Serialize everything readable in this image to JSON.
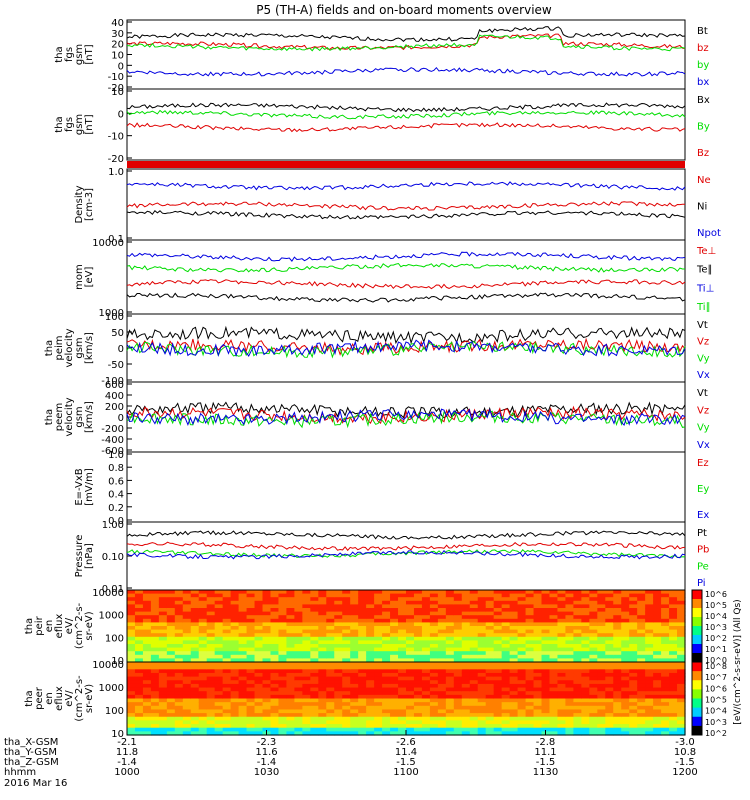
{
  "title": "P5 (TH-A) fields and on-board moments overview",
  "date_label": "2016 Mar 16",
  "colors": {
    "black": "#000000",
    "red": "#e00000",
    "green": "#00dd00",
    "blue": "#0000e0"
  },
  "chart_data": [
    {
      "type": "line",
      "ylabel": [
        "tha",
        "fgs",
        "gsm",
        "[nT]"
      ],
      "ylim": [
        -20,
        40
      ],
      "yticks": [
        "40",
        "30",
        "20",
        "10",
        "0",
        "-10",
        "-20"
      ],
      "series": [
        {
          "name": "Bt",
          "color": "black",
          "base": 26
        },
        {
          "name": "bz",
          "color": "red",
          "base": 18
        },
        {
          "name": "by",
          "color": "green",
          "base": 17
        },
        {
          "name": "bx",
          "color": "blue",
          "base": -6
        }
      ]
    },
    {
      "type": "line",
      "ylabel": [
        "tha",
        "fgs",
        "gsm",
        "[nT]"
      ],
      "ylim": [
        -25,
        12
      ],
      "yticks": [
        "10",
        "0",
        "-10",
        "-20"
      ],
      "series": [
        {
          "name": "Bx",
          "color": "black",
          "base": 3
        },
        {
          "name": "By",
          "color": "green",
          "base": -1
        },
        {
          "name": "Bz",
          "color": "red",
          "base": -8
        }
      ]
    },
    {
      "type": "line",
      "ylabel": [
        "Density",
        "[cm-3]"
      ],
      "ylim": [
        0.1,
        1.0
      ],
      "log": true,
      "yticks": [
        "1.0",
        "0.1"
      ],
      "series": [
        {
          "name": "Ne",
          "color": "red",
          "base": 0.3
        },
        {
          "name": "Ni",
          "color": "black",
          "base": 0.22
        },
        {
          "name": "Npot",
          "color": "blue",
          "base": 0.6
        }
      ]
    },
    {
      "type": "line",
      "ylabel": [
        "mom",
        "[eV]"
      ],
      "ylim": [
        1000,
        10000
      ],
      "log": true,
      "yticks": [
        "10000",
        "1000"
      ],
      "series": [
        {
          "name": "Te⊥",
          "color": "red",
          "base": 2500
        },
        {
          "name": "Te∥",
          "color": "black",
          "base": 1600
        },
        {
          "name": "Ti⊥",
          "color": "blue",
          "base": 6200
        },
        {
          "name": "Ti∥",
          "color": "green",
          "base": 4300
        }
      ]
    },
    {
      "type": "line",
      "ylabel": [
        "tha",
        "peim",
        "velocity",
        "gsm",
        "[km/s]"
      ],
      "ylim": [
        -100,
        100
      ],
      "yticks": [
        "100",
        "50",
        "0",
        "-50",
        "-100"
      ],
      "series": [
        {
          "name": "Vt",
          "color": "black",
          "base": 40
        },
        {
          "name": "Vz",
          "color": "red",
          "base": 5
        },
        {
          "name": "Vy",
          "color": "green",
          "base": -5
        },
        {
          "name": "Vx",
          "color": "blue",
          "base": 0
        }
      ]
    },
    {
      "type": "line",
      "ylabel": [
        "tha",
        "peem",
        "velocity",
        "gsm",
        "[km/s]"
      ],
      "ylim": [
        -600,
        600
      ],
      "yticks": [
        "600",
        "400",
        "200",
        "0",
        "-200",
        "-400",
        "-600"
      ],
      "series": [
        {
          "name": "Vt",
          "color": "black",
          "base": 120
        },
        {
          "name": "Vz",
          "color": "red",
          "base": 30
        },
        {
          "name": "Vy",
          "color": "green",
          "base": -40
        },
        {
          "name": "Vx",
          "color": "blue",
          "base": 0
        }
      ]
    },
    {
      "type": "line",
      "ylabel": [
        "E=-VxB",
        "[mV/m]"
      ],
      "ylim": [
        0,
        1.0
      ],
      "yticks": [
        "1.0",
        "0.8",
        "0.6",
        "0.4",
        "0.2",
        "0.0"
      ],
      "series": [
        {
          "name": "Ez",
          "color": "red"
        },
        {
          "name": "Ey",
          "color": "green"
        },
        {
          "name": "Ex",
          "color": "blue"
        }
      ]
    },
    {
      "type": "line",
      "ylabel": [
        "Pressure",
        "[nPa]"
      ],
      "ylim": [
        0.01,
        1.0
      ],
      "log": true,
      "yticks": [
        "1.00",
        "0.10",
        "0.01"
      ],
      "series": [
        {
          "name": "Pt",
          "color": "black",
          "base": 0.45
        },
        {
          "name": "Pb",
          "color": "red",
          "base": 0.2
        },
        {
          "name": "Pe",
          "color": "green",
          "base": 0.12
        },
        {
          "name": "Pi",
          "color": "blue",
          "base": 0.11
        }
      ]
    },
    {
      "type": "heatmap",
      "ylabel": [
        "tha",
        "peir",
        "en",
        "eflux",
        "eV/",
        "(cm^2-s-",
        "sr-eV)"
      ],
      "ylim": [
        10,
        10000
      ],
      "log": true,
      "yticks": [
        "10000",
        "1000",
        "100",
        "10"
      ],
      "cbar_ticks": [
        "10^6",
        "10^5",
        "10^4",
        "10^3",
        "10^2",
        "10^1",
        "10^0"
      ]
    },
    {
      "type": "heatmap",
      "ylabel": [
        "tha",
        "peer",
        "en",
        "eflux",
        "eV/",
        "(cm^2-s-",
        "sr-eV)"
      ],
      "ylim": [
        10,
        10000
      ],
      "log": true,
      "yticks": [
        "10000",
        "1000",
        "100",
        "10"
      ],
      "cbar_ticks": [
        "10^8",
        "10^7",
        "10^6",
        "10^5",
        "10^4",
        "10^3",
        "10^2"
      ]
    }
  ],
  "colorbar_label": "[eV/(cm^2-s-sr-eV)] (All Qs)",
  "x_axis": {
    "labels": [
      "tha_X-GSM",
      "tha_Y-GSM",
      "tha_Z-GSM",
      "hhmm"
    ],
    "ticks": [
      {
        "t": 0,
        "X": "-2.1",
        "Y": "11.8",
        "Z": "-1.4",
        "hhmm": "1000"
      },
      {
        "t": 0.25,
        "X": "-2.3",
        "Y": "11.6",
        "Z": "-1.4",
        "hhmm": "1030"
      },
      {
        "t": 0.5,
        "X": "-2.6",
        "Y": "11.4",
        "Z": "-1.5",
        "hhmm": "1100"
      },
      {
        "t": 0.75,
        "X": "-2.8",
        "Y": "11.1",
        "Z": "-1.5",
        "hhmm": "1130"
      },
      {
        "t": 1,
        "X": "-3.0",
        "Y": "10.8",
        "Z": "-1.5",
        "hhmm": "1200"
      }
    ]
  }
}
